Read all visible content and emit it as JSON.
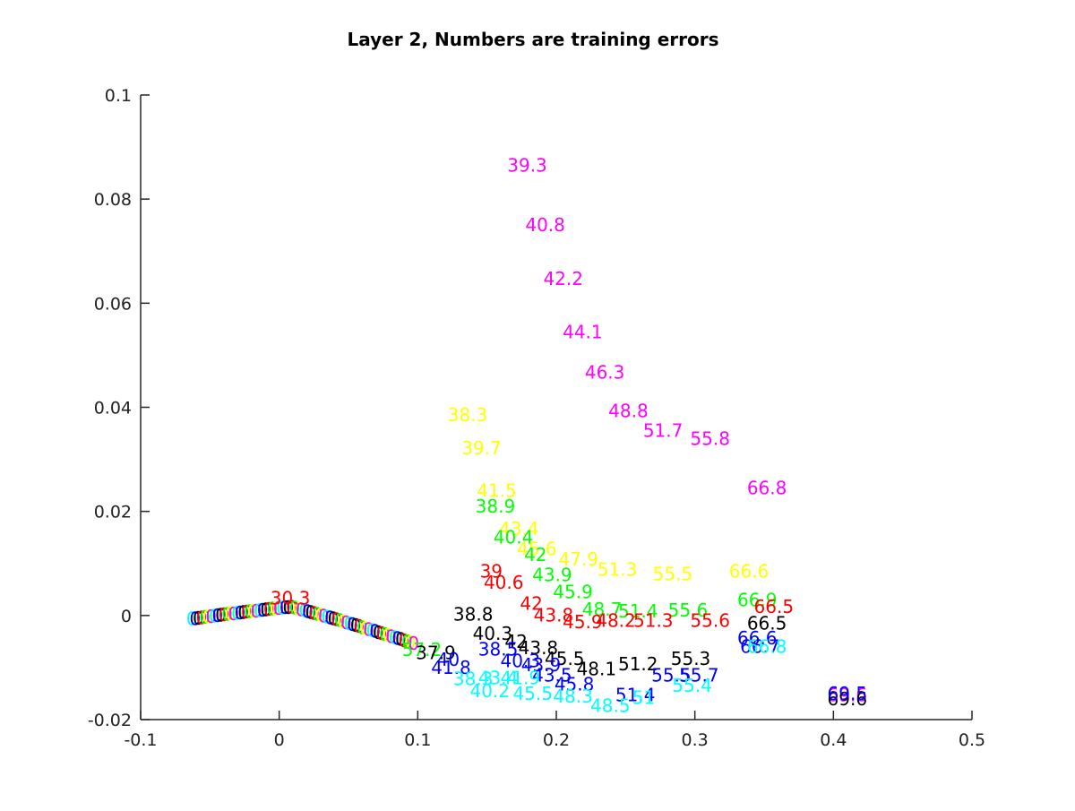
{
  "chart_data": {
    "type": "scatter",
    "title": "Layer 2, Numbers are training errors",
    "xlabel": "",
    "ylabel": "",
    "xlim": [
      -0.1,
      0.5
    ],
    "ylim": [
      -0.02,
      0.1
    ],
    "x_ticks": [
      -0.1,
      0,
      0.1,
      0.2,
      0.3,
      0.4,
      0.5
    ],
    "x_tick_labels": [
      "-0.1",
      "0",
      "0.1",
      "0.2",
      "0.3",
      "0.4",
      "0.5"
    ],
    "y_ticks": [
      -0.02,
      0,
      0.02,
      0.04,
      0.06,
      0.08,
      0.1
    ],
    "y_tick_labels": [
      "-0.02",
      "0",
      "0.02",
      "0.04",
      "0.06",
      "0.08",
      "0.1"
    ],
    "grid": false,
    "series": [
      {
        "color": "#ff00ff",
        "points": [
          {
            "x": 0.179,
            "y": 0.0865,
            "label": "39.3"
          },
          {
            "x": 0.192,
            "y": 0.075,
            "label": "40.8"
          },
          {
            "x": 0.205,
            "y": 0.0647,
            "label": "42.2"
          },
          {
            "x": 0.219,
            "y": 0.0545,
            "label": "44.1"
          },
          {
            "x": 0.235,
            "y": 0.0467,
            "label": "46.3"
          },
          {
            "x": 0.252,
            "y": 0.0393,
            "label": "48.8"
          },
          {
            "x": 0.277,
            "y": 0.0355,
            "label": "51.7"
          },
          {
            "x": 0.311,
            "y": 0.034,
            "label": "55.8"
          },
          {
            "x": 0.352,
            "y": 0.0245,
            "label": "66.8"
          },
          {
            "x": 0.41,
            "y": -0.0153,
            "label": "69.6"
          }
        ]
      },
      {
        "color": "#ffff00",
        "points": [
          {
            "x": 0.136,
            "y": 0.0385,
            "label": "38.3"
          },
          {
            "x": 0.146,
            "y": 0.0322,
            "label": "39.7"
          },
          {
            "x": 0.157,
            "y": 0.024,
            "label": "41.5"
          },
          {
            "x": 0.173,
            "y": 0.0167,
            "label": "43.4"
          },
          {
            "x": 0.186,
            "y": 0.0128,
            "label": "45.6"
          },
          {
            "x": 0.216,
            "y": 0.0108,
            "label": "47.9"
          },
          {
            "x": 0.244,
            "y": 0.0088,
            "label": "51.3"
          },
          {
            "x": 0.284,
            "y": 0.008,
            "label": "55.5"
          },
          {
            "x": 0.339,
            "y": 0.0085,
            "label": "66.6"
          }
        ]
      },
      {
        "color": "#00ff00",
        "points": [
          {
            "x": 0.156,
            "y": 0.021,
            "label": "38.9"
          },
          {
            "x": 0.169,
            "y": 0.015,
            "label": "40.4"
          },
          {
            "x": 0.185,
            "y": 0.0117,
            "label": "42"
          },
          {
            "x": 0.197,
            "y": 0.0078,
            "label": "43.9"
          },
          {
            "x": 0.212,
            "y": 0.0045,
            "label": "45.9"
          },
          {
            "x": 0.233,
            "y": 0.0012,
            "label": "48.7"
          },
          {
            "x": 0.259,
            "y": 0.0008,
            "label": "51.4"
          },
          {
            "x": 0.295,
            "y": 0.001,
            "label": "55.6"
          },
          {
            "x": 0.345,
            "y": 0.003,
            "label": "66.9"
          },
          {
            "x": 0.103,
            "y": -0.0066,
            "label": "57.2"
          }
        ]
      },
      {
        "color": "#ff0000",
        "points": [
          {
            "x": 0.153,
            "y": 0.0085,
            "label": "39"
          },
          {
            "x": 0.162,
            "y": 0.0063,
            "label": "40.6"
          },
          {
            "x": 0.182,
            "y": 0.0023,
            "label": "42"
          },
          {
            "x": 0.198,
            "y": 0.0001,
            "label": "43.8"
          },
          {
            "x": 0.219,
            "y": -0.0012,
            "label": "45.9"
          },
          {
            "x": 0.243,
            "y": -0.001,
            "label": "48.2"
          },
          {
            "x": 0.27,
            "y": -0.001,
            "label": "51.3"
          },
          {
            "x": 0.311,
            "y": -0.001,
            "label": "55.6"
          },
          {
            "x": 0.357,
            "y": 0.0017,
            "label": "66.5"
          },
          {
            "x": 0.008,
            "y": 0.0033,
            "label": "30.3"
          }
        ]
      },
      {
        "color": "#000000",
        "points": [
          {
            "x": 0.14,
            "y": 0.0002,
            "label": "38.8"
          },
          {
            "x": 0.154,
            "y": -0.0035,
            "label": "40.3"
          },
          {
            "x": 0.171,
            "y": -0.005,
            "label": "42"
          },
          {
            "x": 0.187,
            "y": -0.0062,
            "label": "43.8"
          },
          {
            "x": 0.206,
            "y": -0.0083,
            "label": "45.5"
          },
          {
            "x": 0.229,
            "y": -0.0103,
            "label": "48.1"
          },
          {
            "x": 0.259,
            "y": -0.0093,
            "label": "51.2"
          },
          {
            "x": 0.297,
            "y": -0.0083,
            "label": "55.3"
          },
          {
            "x": 0.352,
            "y": -0.0015,
            "label": "66.5"
          },
          {
            "x": 0.41,
            "y": -0.016,
            "label": "69.6"
          },
          {
            "x": 0.113,
            "y": -0.0072,
            "label": "37.9"
          }
        ]
      },
      {
        "color": "#0000ff",
        "points": [
          {
            "x": 0.158,
            "y": -0.0065,
            "label": "38.5"
          },
          {
            "x": 0.124,
            "y": -0.01,
            "label": "41.8"
          },
          {
            "x": 0.122,
            "y": -0.0085,
            "label": "40"
          },
          {
            "x": 0.174,
            "y": -0.0087,
            "label": "40.3"
          },
          {
            "x": 0.189,
            "y": -0.0095,
            "label": "43.9"
          },
          {
            "x": 0.197,
            "y": -0.0115,
            "label": "43.5"
          },
          {
            "x": 0.213,
            "y": -0.0132,
            "label": "45.8"
          },
          {
            "x": 0.257,
            "y": -0.0153,
            "label": "51.4"
          },
          {
            "x": 0.283,
            "y": -0.0115,
            "label": "55.5"
          },
          {
            "x": 0.303,
            "y": -0.0115,
            "label": "55.7"
          },
          {
            "x": 0.345,
            "y": -0.0043,
            "label": "66.6"
          },
          {
            "x": 0.347,
            "y": -0.006,
            "label": "66.7"
          },
          {
            "x": 0.41,
            "y": -0.015,
            "label": "69.5"
          }
        ]
      },
      {
        "color": "#00ffff",
        "points": [
          {
            "x": 0.14,
            "y": -0.0122,
            "label": "38.3"
          },
          {
            "x": 0.152,
            "y": -0.0145,
            "label": "40.2"
          },
          {
            "x": 0.158,
            "y": -0.012,
            "label": "43.4"
          },
          {
            "x": 0.174,
            "y": -0.012,
            "label": "41.9"
          },
          {
            "x": 0.183,
            "y": -0.015,
            "label": "45.5"
          },
          {
            "x": 0.212,
            "y": -0.0155,
            "label": "48.3"
          },
          {
            "x": 0.239,
            "y": -0.0173,
            "label": "48.5"
          },
          {
            "x": 0.263,
            "y": -0.0158,
            "label": "51"
          },
          {
            "x": 0.298,
            "y": -0.0135,
            "label": "55.4"
          },
          {
            "x": 0.352,
            "y": -0.006,
            "label": "66.8"
          }
        ]
      }
    ]
  }
}
